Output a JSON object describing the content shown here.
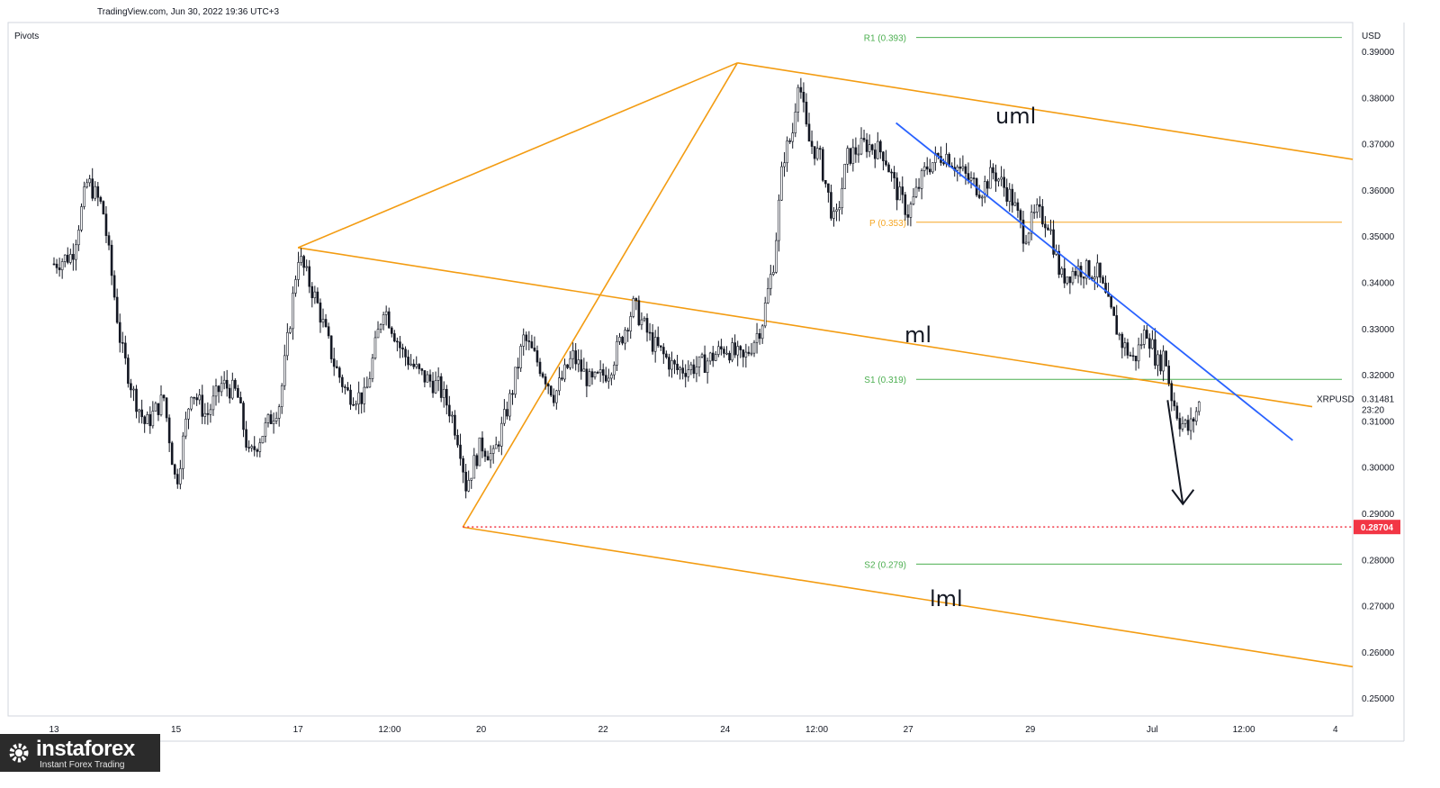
{
  "header": {
    "source_line": "TradingView.com, Jun 30, 2022 19:36 UTC+3",
    "indicator": "Pivots"
  },
  "logo": {
    "name": "instaforex",
    "tagline": "Instant Forex Trading"
  },
  "chart_data": {
    "type": "candlestick",
    "symbol": "XRPUSD",
    "currency_label": "USD",
    "y_axis": {
      "range": [
        0.245,
        0.397
      ],
      "ticks": [
        "0.39000",
        "0.38000",
        "0.37000",
        "0.36000",
        "0.35000",
        "0.34000",
        "0.33000",
        "0.32000",
        "0.31000",
        "0.30000",
        "0.29000",
        "0.28000",
        "0.27000",
        "0.26000",
        "0.25000"
      ],
      "tick_values": [
        0.39,
        0.38,
        0.37,
        0.36,
        0.35,
        0.34,
        0.33,
        0.32,
        0.31,
        0.3,
        0.29,
        0.28,
        0.27,
        0.26,
        0.25
      ]
    },
    "x_axis": {
      "ticks": [
        "13",
        "15",
        "17",
        "12:00",
        "20",
        "22",
        "24",
        "12:00",
        "27",
        "29",
        "Jul",
        "12:00",
        "4"
      ],
      "tick_days": [
        0,
        2,
        4,
        5.5,
        7,
        9,
        11,
        12.5,
        14,
        16,
        18,
        19.5,
        21
      ]
    },
    "last_price": {
      "value": 0.31481,
      "label": "0.31481",
      "countdown": "23:20"
    },
    "marked_level": {
      "value": 0.28704,
      "label": "0.28704",
      "color": "#f23645"
    },
    "pivots": [
      {
        "label": "R1 (0.393)",
        "value": 0.393,
        "color": "#4caf50"
      },
      {
        "label": "P (0.353)",
        "value": 0.353,
        "color": "#f5a623"
      },
      {
        "label": "S1 (0.319)",
        "value": 0.319,
        "color": "#4caf50"
      },
      {
        "label": "S2 (0.279)",
        "value": 0.279,
        "color": "#4caf50"
      }
    ],
    "pitchfork": {
      "color": "#f39c12",
      "anchor_points": [
        {
          "day": 4.0,
          "value": 0.3475
        },
        {
          "day": 11.2,
          "value": 0.3875
        },
        {
          "day": 6.7,
          "value": 0.287
        }
      ],
      "labels": [
        "uml",
        "ml",
        "lml"
      ]
    },
    "downtrend_line": {
      "color": "#2962ff",
      "from": {
        "day": 13.8,
        "value": 0.3745
      },
      "to": {
        "day": 20.3,
        "value": 0.3058
      }
    },
    "arrow": {
      "from": {
        "day": 18.25,
        "value": 0.3145
      },
      "to": {
        "day": 18.5,
        "value": 0.292
      }
    },
    "price_path": [
      {
        "day": 0.0,
        "value": 0.344
      },
      {
        "day": 0.3,
        "value": 0.346
      },
      {
        "day": 0.55,
        "value": 0.362
      },
      {
        "day": 0.8,
        "value": 0.356
      },
      {
        "day": 1.1,
        "value": 0.326
      },
      {
        "day": 1.3,
        "value": 0.316
      },
      {
        "day": 1.5,
        "value": 0.309
      },
      {
        "day": 1.8,
        "value": 0.315
      },
      {
        "day": 2.0,
        "value": 0.296
      },
      {
        "day": 2.25,
        "value": 0.317
      },
      {
        "day": 2.5,
        "value": 0.311
      },
      {
        "day": 2.75,
        "value": 0.318
      },
      {
        "day": 3.0,
        "value": 0.316
      },
      {
        "day": 3.2,
        "value": 0.302
      },
      {
        "day": 3.4,
        "value": 0.307
      },
      {
        "day": 3.7,
        "value": 0.314
      },
      {
        "day": 3.9,
        "value": 0.335
      },
      {
        "day": 4.0,
        "value": 0.346
      },
      {
        "day": 4.3,
        "value": 0.336
      },
      {
        "day": 4.6,
        "value": 0.322
      },
      {
        "day": 4.8,
        "value": 0.316
      },
      {
        "day": 5.1,
        "value": 0.315
      },
      {
        "day": 5.4,
        "value": 0.335
      },
      {
        "day": 5.7,
        "value": 0.325
      },
      {
        "day": 6.0,
        "value": 0.32
      },
      {
        "day": 6.3,
        "value": 0.3175
      },
      {
        "day": 6.5,
        "value": 0.312
      },
      {
        "day": 6.65,
        "value": 0.305
      },
      {
        "day": 6.75,
        "value": 0.296
      },
      {
        "day": 7.0,
        "value": 0.305
      },
      {
        "day": 7.2,
        "value": 0.302
      },
      {
        "day": 7.5,
        "value": 0.316
      },
      {
        "day": 7.7,
        "value": 0.328
      },
      {
        "day": 8.0,
        "value": 0.321
      },
      {
        "day": 8.2,
        "value": 0.3155
      },
      {
        "day": 8.5,
        "value": 0.324
      },
      {
        "day": 8.8,
        "value": 0.318
      },
      {
        "day": 9.1,
        "value": 0.321
      },
      {
        "day": 9.5,
        "value": 0.335
      },
      {
        "day": 9.8,
        "value": 0.327
      },
      {
        "day": 10.2,
        "value": 0.321
      },
      {
        "day": 10.6,
        "value": 0.322
      },
      {
        "day": 11.0,
        "value": 0.326
      },
      {
        "day": 11.3,
        "value": 0.323
      },
      {
        "day": 11.6,
        "value": 0.331
      },
      {
        "day": 11.8,
        "value": 0.345
      },
      {
        "day": 11.95,
        "value": 0.367
      },
      {
        "day": 12.1,
        "value": 0.372
      },
      {
        "day": 12.2,
        "value": 0.385
      },
      {
        "day": 12.35,
        "value": 0.371
      },
      {
        "day": 12.55,
        "value": 0.367
      },
      {
        "day": 12.8,
        "value": 0.352
      },
      {
        "day": 13.0,
        "value": 0.367
      },
      {
        "day": 13.3,
        "value": 0.37
      },
      {
        "day": 13.6,
        "value": 0.368
      },
      {
        "day": 13.8,
        "value": 0.36
      },
      {
        "day": 14.0,
        "value": 0.355
      },
      {
        "day": 14.3,
        "value": 0.365
      },
      {
        "day": 14.6,
        "value": 0.368
      },
      {
        "day": 14.8,
        "value": 0.365
      },
      {
        "day": 15.0,
        "value": 0.362
      },
      {
        "day": 15.2,
        "value": 0.36
      },
      {
        "day": 15.4,
        "value": 0.364
      },
      {
        "day": 15.7,
        "value": 0.358
      },
      {
        "day": 15.9,
        "value": 0.35
      },
      {
        "day": 16.1,
        "value": 0.355
      },
      {
        "day": 16.3,
        "value": 0.353
      },
      {
        "day": 16.5,
        "value": 0.341
      },
      {
        "day": 16.8,
        "value": 0.343
      },
      {
        "day": 17.1,
        "value": 0.342
      },
      {
        "day": 17.3,
        "value": 0.334
      },
      {
        "day": 17.5,
        "value": 0.327
      },
      {
        "day": 17.7,
        "value": 0.323
      },
      {
        "day": 17.9,
        "value": 0.33
      },
      {
        "day": 18.1,
        "value": 0.322
      },
      {
        "day": 18.2,
        "value": 0.325
      },
      {
        "day": 18.3,
        "value": 0.316
      },
      {
        "day": 18.45,
        "value": 0.31
      },
      {
        "day": 18.6,
        "value": 0.308
      },
      {
        "day": 18.8,
        "value": 0.3148
      }
    ]
  }
}
